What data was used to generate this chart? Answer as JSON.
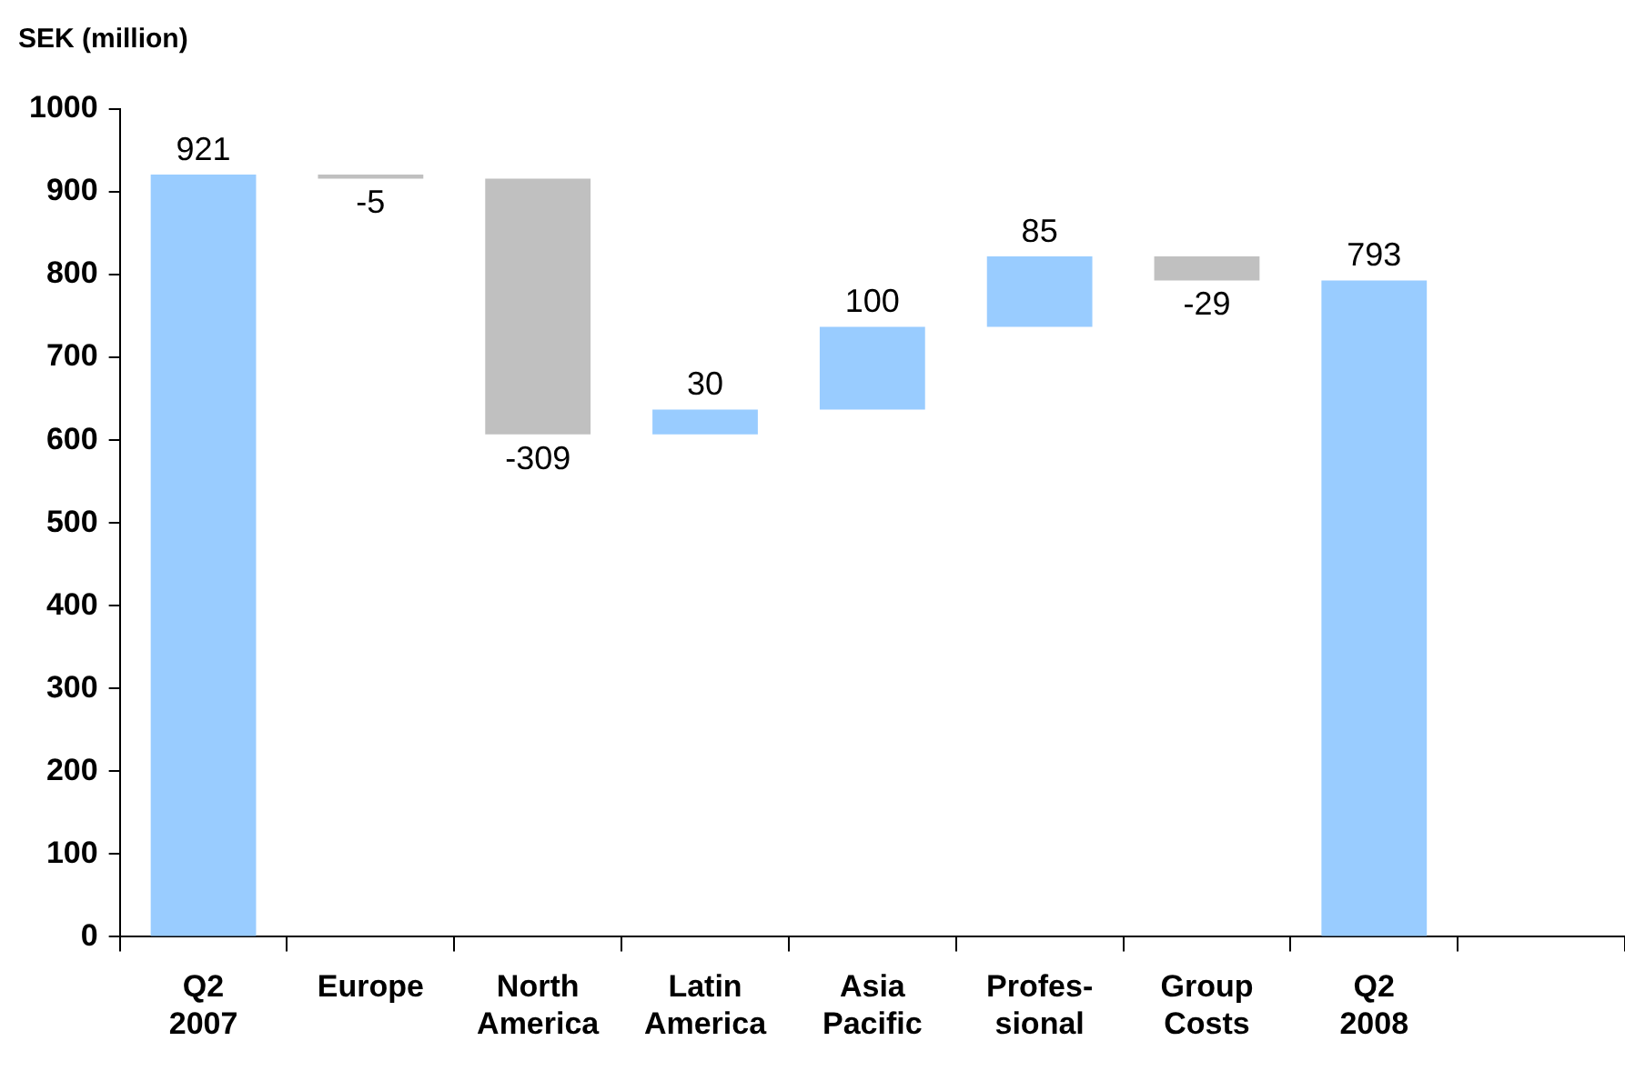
{
  "chart_data": {
    "type": "bar",
    "ylabel": "SEK (million)",
    "categories": [
      "Q2\n2007",
      "Europe",
      "North\nAmerica",
      "Latin\nAmerica",
      "Asia\nPacific",
      "Profes-\nsional",
      "Group\nCosts",
      "Q2\n2008",
      null
    ],
    "values": [
      921,
      -5,
      -309,
      30,
      100,
      85,
      -29,
      793,
      null
    ],
    "base": [
      0,
      921,
      916,
      607,
      637,
      737,
      822,
      0,
      null
    ],
    "colors": [
      "#99ccff",
      "#c0c0c0",
      "#c0c0c0",
      "#99ccff",
      "#99ccff",
      "#99ccff",
      "#c0c0c0",
      "#99ccff",
      "#99ccff"
    ],
    "ylim": [
      0,
      1000
    ],
    "yticks": [
      0,
      100,
      200,
      300,
      400,
      500,
      600,
      700,
      800,
      900,
      1000
    ],
    "data_labels": true,
    "grid": false,
    "legend": false
  }
}
